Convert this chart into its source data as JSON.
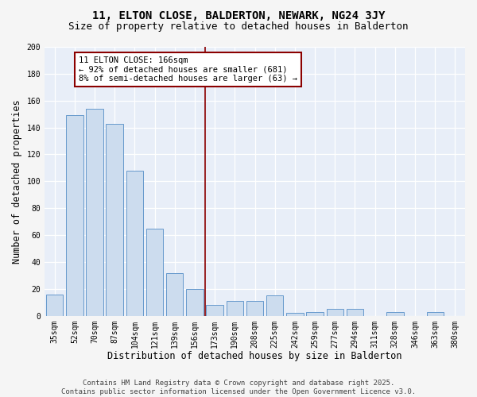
{
  "title": "11, ELTON CLOSE, BALDERTON, NEWARK, NG24 3JY",
  "subtitle": "Size of property relative to detached houses in Balderton",
  "xlabel": "Distribution of detached houses by size in Balderton",
  "ylabel": "Number of detached properties",
  "categories": [
    "35sqm",
    "52sqm",
    "70sqm",
    "87sqm",
    "104sqm",
    "121sqm",
    "139sqm",
    "156sqm",
    "173sqm",
    "190sqm",
    "208sqm",
    "225sqm",
    "242sqm",
    "259sqm",
    "277sqm",
    "294sqm",
    "311sqm",
    "328sqm",
    "346sqm",
    "363sqm",
    "380sqm"
  ],
  "values": [
    16,
    149,
    154,
    143,
    108,
    65,
    32,
    20,
    8,
    11,
    11,
    15,
    2,
    3,
    5,
    5,
    0,
    3,
    0,
    3,
    0
  ],
  "bar_color": "#ccdcee",
  "bar_edge_color": "#6699cc",
  "background_color": "#e8eef8",
  "grid_color": "#ffffff",
  "vline_x": 7.5,
  "vline_color": "#8b0000",
  "annotation_text": "11 ELTON CLOSE: 166sqm\n← 92% of detached houses are smaller (681)\n8% of semi-detached houses are larger (63) →",
  "annotation_box_color": "#8b0000",
  "footer_line1": "Contains HM Land Registry data © Crown copyright and database right 2025.",
  "footer_line2": "Contains public sector information licensed under the Open Government Licence v3.0.",
  "ylim": [
    0,
    200
  ],
  "yticks": [
    0,
    20,
    40,
    60,
    80,
    100,
    120,
    140,
    160,
    180,
    200
  ],
  "title_fontsize": 10,
  "subtitle_fontsize": 9,
  "axis_label_fontsize": 8.5,
  "tick_fontsize": 7,
  "footer_fontsize": 6.5,
  "annot_fontsize": 7.5,
  "fig_bg": "#f5f5f5"
}
